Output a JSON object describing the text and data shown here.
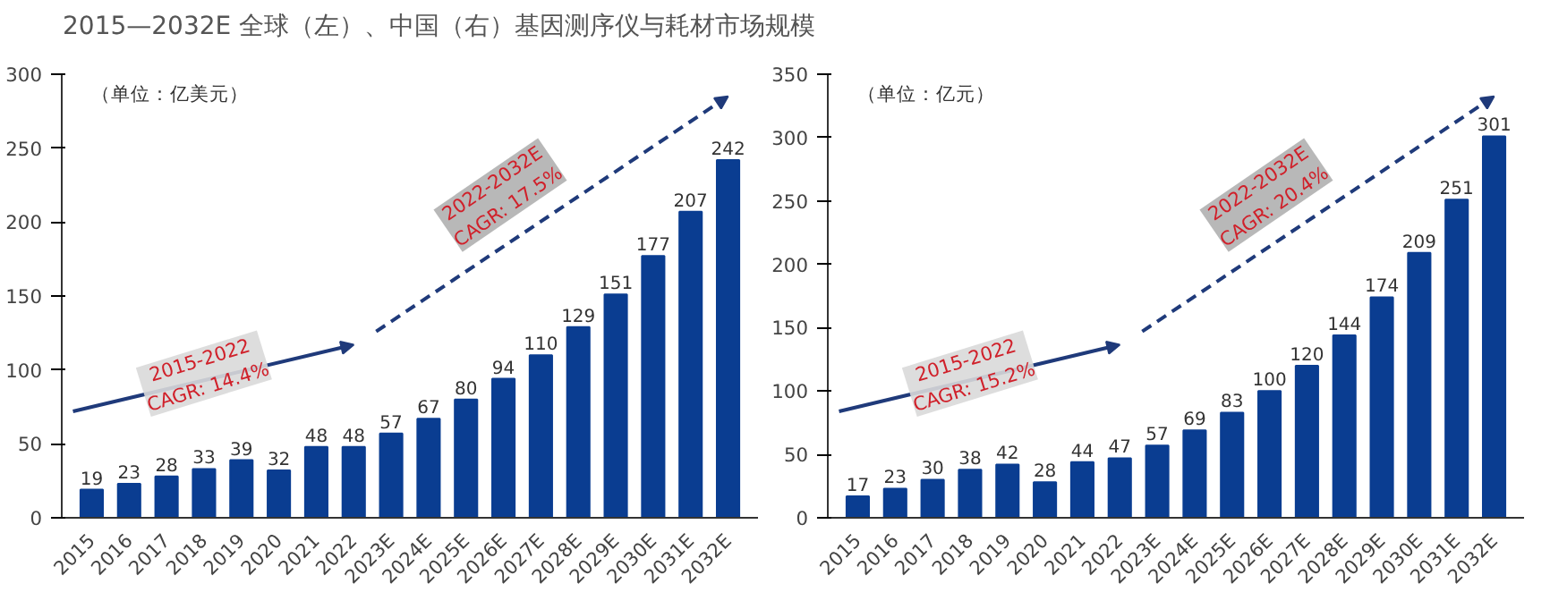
{
  "chart_data": [
    {
      "type": "bar",
      "title": "2015—2032E 全球（左）、中国（右）基因测序仪与耗材市场规模",
      "categories": [
        "2015",
        "2016",
        "2017",
        "2018",
        "2019",
        "2020",
        "2021",
        "2022",
        "2023E",
        "2024E",
        "2025E",
        "2026E",
        "2027E",
        "2028E",
        "2029E",
        "2030E",
        "2031E",
        "2032E"
      ],
      "values": [
        19,
        23,
        28,
        33,
        39,
        32,
        48,
        48,
        57,
        67,
        80,
        94,
        110,
        129,
        151,
        177,
        207,
        242
      ],
      "color": "#0a3d91",
      "ylim": [
        0,
        300
      ],
      "yticks": [
        0,
        50,
        100,
        150,
        200,
        250,
        300
      ],
      "data_labels": true,
      "grid": false,
      "annotations": [
        "（单位：亿美元）",
        "2015-2022\nCAGR: 14.4%",
        "2022-2032E\nCAGR: 17.5%"
      ]
    },
    {
      "type": "bar",
      "categories": [
        "2015",
        "2016",
        "2017",
        "2018",
        "2019",
        "2020",
        "2021",
        "2022",
        "2023E",
        "2024E",
        "2025E",
        "2026E",
        "2027E",
        "2028E",
        "2029E",
        "2030E",
        "2031E",
        "2032E"
      ],
      "values": [
        17,
        23,
        30,
        38,
        42,
        28,
        44,
        47,
        57,
        69,
        83,
        100,
        120,
        144,
        174,
        209,
        251,
        301
      ],
      "color": "#0a3d91",
      "ylim": [
        0,
        350
      ],
      "yticks": [
        0,
        50,
        100,
        150,
        200,
        250,
        300,
        350
      ],
      "data_labels": true,
      "grid": false,
      "annotations": [
        "（单位：亿元）",
        "2015-2022\nCAGR: 15.2%",
        "2022-2032E\nCAGR: 20.4%"
      ]
    }
  ]
}
